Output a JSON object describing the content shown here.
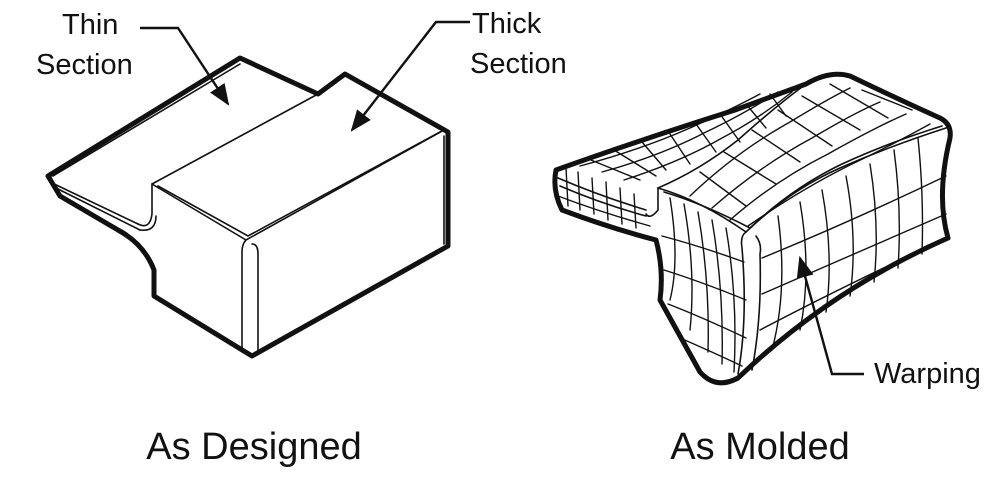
{
  "labels": {
    "thin_line1": "Thin",
    "thin_line2": "Section",
    "thick_line1": "Thick",
    "thick_line2": "Section",
    "warping": "Warping"
  },
  "captions": {
    "designed": "As Designed",
    "molded": "As Molded"
  },
  "colors": {
    "ink": "#111111",
    "background": "#ffffff"
  }
}
